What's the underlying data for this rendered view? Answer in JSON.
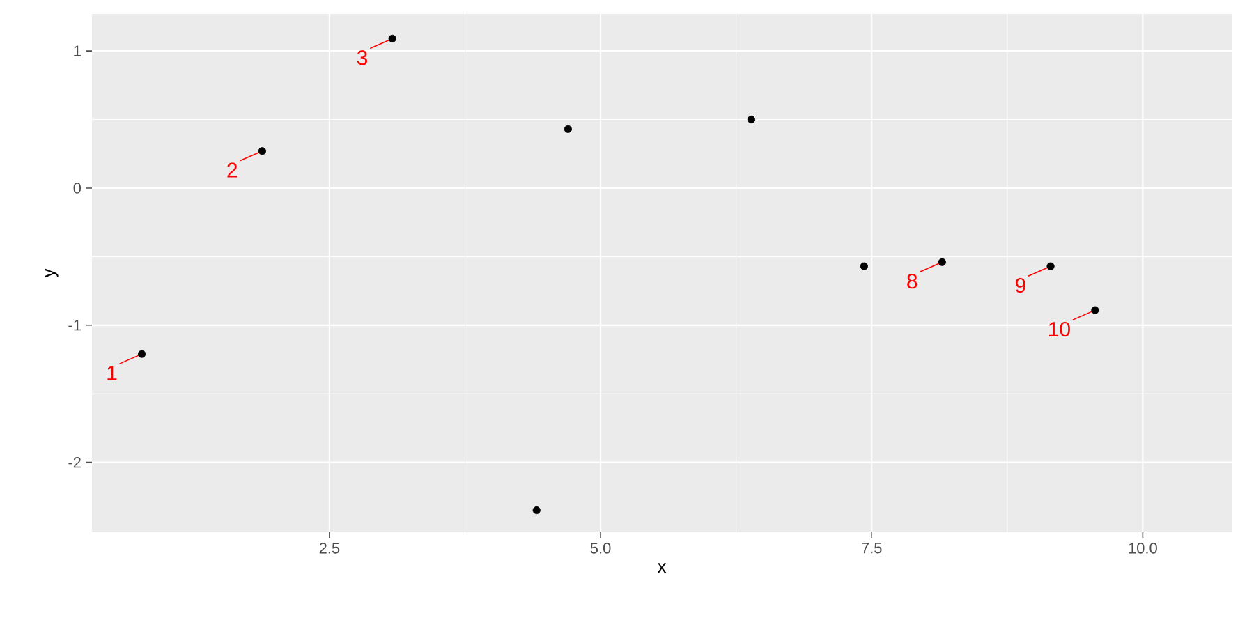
{
  "chart_data": {
    "type": "scatter",
    "xlabel": "x",
    "ylabel": "y",
    "x": [
      0.77,
      1.88,
      3.08,
      4.41,
      4.7,
      6.39,
      7.43,
      8.15,
      9.15,
      9.56
    ],
    "series": [
      {
        "color": "#000000",
        "values": [
          -1.21,
          0.27,
          1.09,
          -2.35,
          0.43,
          0.5,
          -0.57,
          -0.54,
          -0.57,
          -0.89
        ]
      }
    ],
    "xlim": [
      0.31,
      10.82
    ],
    "ylim": [
      -2.51,
      1.27
    ],
    "xticks": [
      2.5,
      {
        "value": 5,
        "label": "5.0"
      },
      {
        "value": 7.5,
        "label": "7.5"
      },
      {
        "value": 10,
        "label": "10.0"
      }
    ],
    "yticks": [
      -2,
      -1,
      0,
      1
    ],
    "grid": true,
    "marker": "circle",
    "annotations": [
      {
        "text": "1",
        "x": 0.77,
        "y": -1.21
      },
      {
        "text": "2",
        "x": 1.88,
        "y": 0.27
      },
      {
        "text": "3",
        "x": 3.08,
        "y": 1.09
      },
      {
        "text": "8",
        "x": 8.15,
        "y": -0.54
      },
      {
        "text": "9",
        "x": 9.15,
        "y": -0.57
      },
      {
        "text": "10",
        "x": 9.56,
        "y": -0.89
      }
    ]
  }
}
